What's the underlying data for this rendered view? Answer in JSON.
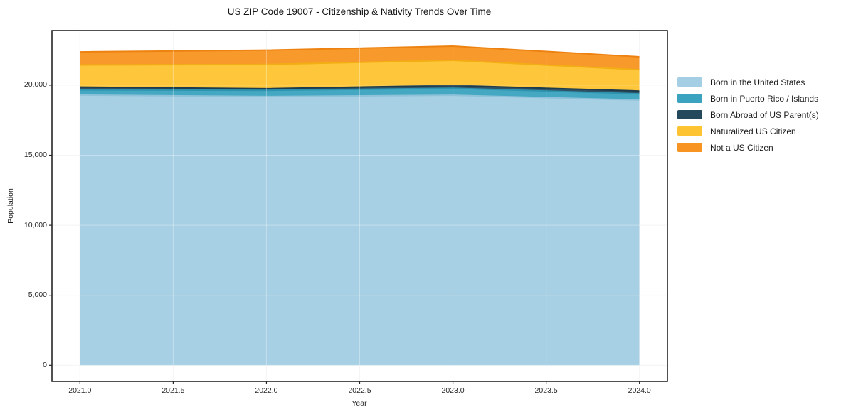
{
  "title": "US ZIP Code 19007 - Citizenship & Nativity Trends Over Time",
  "chart_data": {
    "type": "area",
    "stacked": true,
    "title": "US ZIP Code 19007 - Citizenship & Nativity Trends Over Time",
    "xlabel": "Year",
    "ylabel": "Population",
    "grid": true,
    "legend_position": "right-outside",
    "x": [
      2021,
      2022,
      2023,
      2024
    ],
    "xlim": [
      2020.85,
      2024.15
    ],
    "ylim": [
      -1150,
      23900
    ],
    "x_tick_values": [
      2021.0,
      2021.5,
      2022.0,
      2022.5,
      2023.0,
      2023.5,
      2024.0
    ],
    "x_ticks": [
      "2021.0",
      "2021.5",
      "2022.0",
      "2022.5",
      "2023.0",
      "2023.5",
      "2024.0"
    ],
    "y_tick_values": [
      0,
      5000,
      10000,
      15000,
      20000
    ],
    "y_ticks": [
      "0",
      "5,000",
      "10,000",
      "15,000",
      "20,000"
    ],
    "series": [
      {
        "name": "Born in the United States",
        "color": "#a3cee3",
        "edge": "#8ec2d9",
        "values": [
          19290,
          19190,
          19280,
          18940
        ]
      },
      {
        "name": "Born in Puerto Rico / Islands",
        "color": "#3ba3bf",
        "edge": "#2e93ae",
        "values": [
          370,
          440,
          500,
          440
        ]
      },
      {
        "name": "Born Abroad of US Parent(s)",
        "color": "#24485c",
        "edge": "#1d3c4d",
        "values": [
          200,
          120,
          200,
          200
        ]
      },
      {
        "name": "Naturalized US Citizen",
        "color": "#fdc330",
        "edge": "#f2ae13",
        "values": [
          1575,
          1730,
          1790,
          1520
        ]
      },
      {
        "name": "Not a US Citizen",
        "color": "#f89421",
        "edge": "#ee8210",
        "values": [
          940,
          1020,
          1015,
          925
        ]
      }
    ],
    "totals_by_year": [
      22375,
      22500,
      22785,
      22025
    ]
  }
}
